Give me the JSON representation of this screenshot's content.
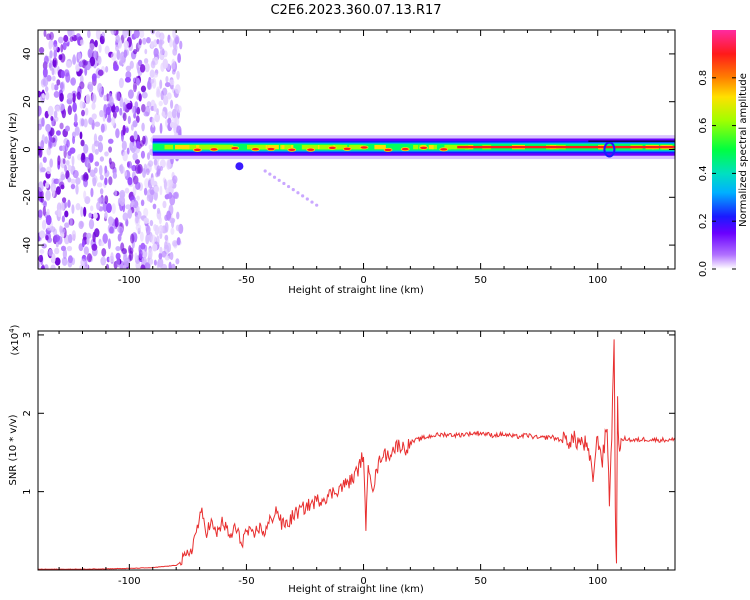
{
  "title": "C2E6.2023.360.07.13.R17",
  "colors": {
    "snr_line": "#e83030",
    "axis": "#000000",
    "spectrogram_scatter": "#7a10e0",
    "spectrogram_core": "#ff1a1a"
  },
  "chart_data": [
    {
      "type": "heatmap",
      "name": "spectrogram",
      "xlabel": "Height of straight line (km)",
      "ylabel": "Frequency (Hz)",
      "xlim": [
        -139,
        133
      ],
      "ylim": [
        -50,
        50
      ],
      "xticks": [
        -100,
        -50,
        0,
        50,
        100
      ],
      "yticks": [
        -40,
        -20,
        0,
        20,
        40
      ],
      "colorbar": {
        "label": "Normalized spectral amplitude",
        "range": [
          0.0,
          1.0
        ],
        "ticks": [
          "0.0",
          "0.2",
          "0.4",
          "0.6",
          "0.8"
        ],
        "colormap": "rainbow"
      },
      "features": {
        "noise_region_x": [
          -139,
          -78
        ],
        "carrier_frequency_hz": 1,
        "carrier_start_x": -90,
        "carrier_end_x": 133
      }
    },
    {
      "type": "line",
      "name": "snr",
      "xlabel": "Height of straight line (km)",
      "ylabel": "SNR (10 * v/v)",
      "y_multiplier_label": "(x10",
      "y_multiplier_exp": "4",
      "y_multiplier_close": ")",
      "xlim": [
        -139,
        133
      ],
      "ylim": [
        0,
        3.05
      ],
      "xticks": [
        -100,
        -50,
        0,
        50,
        100
      ],
      "yticks": [
        1,
        2,
        3
      ],
      "series": [
        {
          "x": [
            -139,
            -120,
            -100,
            -90,
            -80,
            -76,
            -73,
            -71,
            -69,
            -67,
            -65,
            -63,
            -60,
            -57,
            -55,
            -52,
            -50,
            -47,
            -45,
            -42,
            -40,
            -37,
            -35,
            -32,
            -30,
            -25,
            -20,
            -15,
            -10,
            -5,
            -2,
            0,
            1,
            2,
            4,
            6,
            8,
            10,
            13,
            15,
            18,
            20,
            22,
            25,
            30,
            35,
            40,
            45,
            50,
            55,
            60,
            65,
            70,
            75,
            80,
            85,
            90,
            95,
            98,
            100,
            102,
            104,
            105,
            106,
            107,
            107.5,
            108,
            108.5,
            109,
            110,
            112,
            115,
            120,
            125,
            133
          ],
          "y": [
            0.01,
            0.01,
            0.02,
            0.03,
            0.06,
            0.15,
            0.3,
            0.55,
            0.72,
            0.5,
            0.6,
            0.45,
            0.62,
            0.4,
            0.55,
            0.35,
            0.5,
            0.42,
            0.55,
            0.48,
            0.62,
            0.78,
            0.58,
            0.6,
            0.7,
            0.8,
            0.88,
            0.95,
            1.05,
            1.15,
            1.3,
            1.5,
            0.45,
            1.4,
            1.05,
            1.3,
            1.5,
            1.45,
            1.55,
            1.6,
            1.55,
            1.62,
            1.65,
            1.68,
            1.72,
            1.73,
            1.72,
            1.74,
            1.75,
            1.72,
            1.73,
            1.7,
            1.72,
            1.68,
            1.7,
            1.65,
            1.66,
            1.6,
            1.2,
            1.7,
            1.4,
            1.85,
            0.9,
            1.7,
            3.05,
            0.8,
            0.05,
            2.1,
            1.6,
            1.65,
            1.68,
            1.65,
            1.67,
            1.66,
            1.66
          ]
        }
      ]
    }
  ]
}
